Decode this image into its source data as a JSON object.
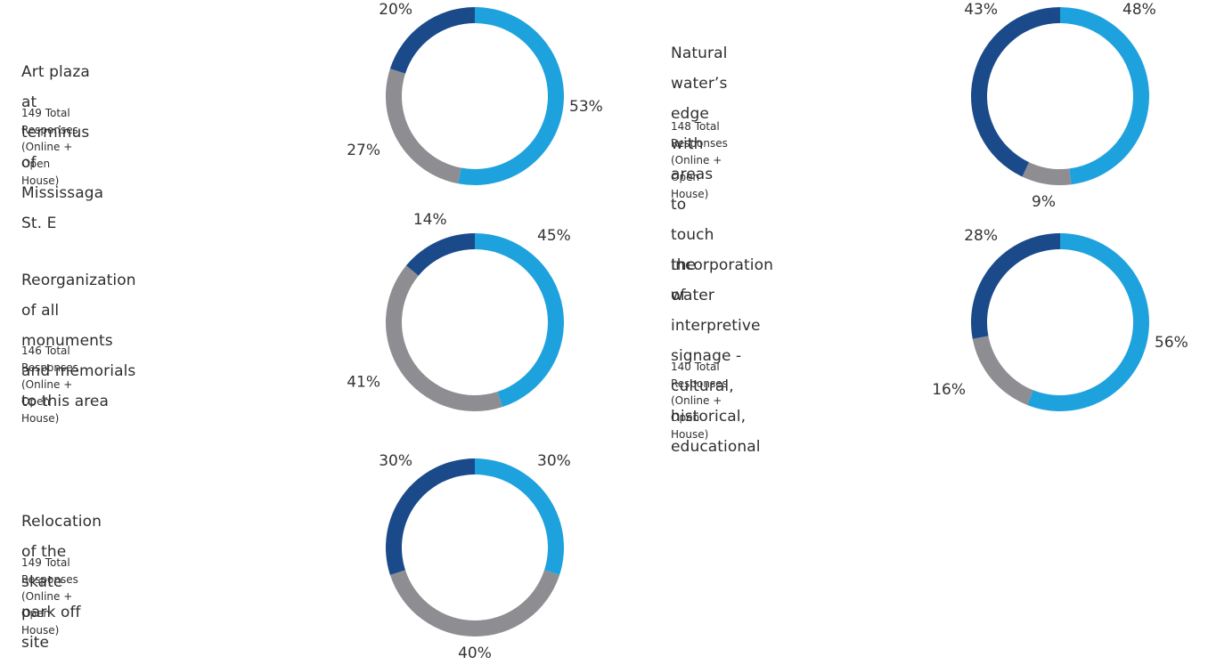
{
  "colors": {
    "dark_blue": "#1B4A8B",
    "light_blue": "#1EA2DE",
    "gray": "#8E8E92"
  },
  "chart_data": [
    {
      "type": "donut",
      "title": "Art plaza at terminus of Mississaga St. E",
      "title_lines": [
        "Art plaza at terminus of Mississaga St. E"
      ],
      "total_line_1": "149 Total Responses",
      "total_line_2": "(Online + Open House)",
      "slices": [
        {
          "value": 53,
          "label": "53%",
          "color": "#1EA2DE"
        },
        {
          "value": 27,
          "label": "27%",
          "color": "#8E8E92"
        },
        {
          "value": 20,
          "label": "20%",
          "color": "#1B4A8B"
        }
      ]
    },
    {
      "type": "donut",
      "title": "Natural water’s edge with areas to touch the water",
      "title_lines": [
        "Natural water’s edge with areas",
        "to touch the water"
      ],
      "total_line_1": "148 Total Responses",
      "total_line_2": "(Online + Open House)",
      "slices": [
        {
          "value": 48,
          "label": "48%",
          "color": "#1EA2DE"
        },
        {
          "value": 9,
          "label": "9%",
          "color": "#8E8E92"
        },
        {
          "value": 43,
          "label": "43%",
          "color": "#1B4A8B"
        }
      ]
    },
    {
      "type": "donut",
      "title": "Reorganization of all monuments and memorials to this area",
      "title_lines": [
        "Reorganization of all monuments",
        "and memorials to this area"
      ],
      "total_line_1": "146 Total Responses",
      "total_line_2": "(Online + Open House)",
      "slices": [
        {
          "value": 45,
          "label": "45%",
          "color": "#1EA2DE"
        },
        {
          "value": 41,
          "label": "41%",
          "color": "#8E8E92"
        },
        {
          "value": 14,
          "label": "14%",
          "color": "#1B4A8B"
        }
      ]
    },
    {
      "type": "donut",
      "title": "Incorporation of interpretive signage - cultural, historical, educational",
      "title_lines": [
        "Incorporation of interpretive",
        "signage - cultural, historical,",
        "educational"
      ],
      "total_line_1": "140 Total Responses",
      "total_line_2": "(Online + Open House)",
      "slices": [
        {
          "value": 56,
          "label": "56%",
          "color": "#1EA2DE"
        },
        {
          "value": 16,
          "label": "16%",
          "color": "#8E8E92"
        },
        {
          "value": 28,
          "label": "28%",
          "color": "#1B4A8B"
        }
      ]
    },
    {
      "type": "donut",
      "title": "Relocation of the skate park off site",
      "title_lines": [
        "Relocation of the skate park off site"
      ],
      "total_line_1": "149 Total Responses",
      "total_line_2": "(Online + Open House)",
      "slices": [
        {
          "value": 30,
          "label": "30%",
          "color": "#1EA2DE"
        },
        {
          "value": 40,
          "label": "40%",
          "color": "#8E8E92"
        },
        {
          "value": 30,
          "label": "30%",
          "color": "#1B4A8B"
        }
      ]
    }
  ]
}
